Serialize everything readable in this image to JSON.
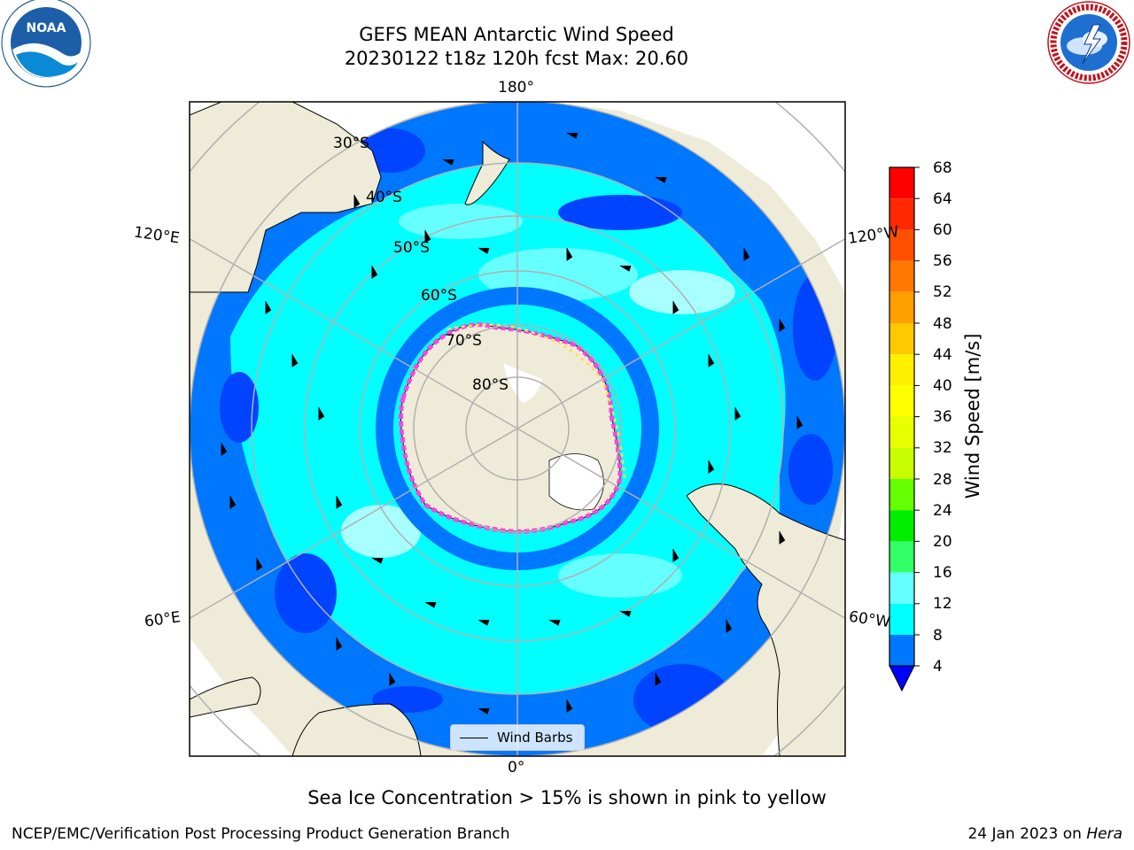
{
  "title": {
    "line1": "GEFS MEAN Antarctic Wind Speed",
    "line2": "20230122 t18z 120h fcst   Max: 20.60"
  },
  "logos": {
    "left_text": "NOAA",
    "right_text": "NATIONAL WEATHER SERVICE"
  },
  "map": {
    "projection": "south-polar-stereographic",
    "longitude_labels": {
      "top": "180°",
      "bottom": "0°",
      "left_upper": "120°E",
      "left_lower": "60°E",
      "right_upper": "120°W",
      "right_lower": "60°W"
    },
    "latitude_labels": [
      "30°S",
      "40°S",
      "50°S",
      "60°S",
      "70°S",
      "80°S"
    ],
    "legend_label": "Wind Barbs",
    "colors": {
      "land": "#eeecd9",
      "ice_white": "#ffffff",
      "ice_pink": "#ff44dd",
      "ice_yellow": "#ffdd55",
      "ocean_deep": "#0044ff",
      "ocean_mid": "#0077ff",
      "ocean_cyan": "#00ffff",
      "ocean_light": "#66ffff",
      "ocean_pale": "#a8ffff",
      "grid": "#b0b0b0"
    }
  },
  "colorbar": {
    "title": "Wind Speed [m/s]",
    "ticks": [
      "68",
      "64",
      "60",
      "56",
      "52",
      "48",
      "44",
      "40",
      "36",
      "32",
      "28",
      "24",
      "20",
      "16",
      "12",
      "8",
      "4"
    ],
    "colors": [
      "#ff0000",
      "#ff2800",
      "#ff5000",
      "#ff7800",
      "#ffa000",
      "#ffc800",
      "#fff000",
      "#ffff00",
      "#e8ff00",
      "#c8ff00",
      "#64ff00",
      "#00ee00",
      "#33ff66",
      "#66ffff",
      "#00ffff",
      "#0077ff",
      "#0000ff"
    ]
  },
  "note": "Sea Ice Concentration > 15% is shown in pink to yellow",
  "footer": {
    "left": "NCEP/EMC/Verification Post Processing Product Generation Branch",
    "right_date": "24 Jan 2023 on",
    "right_host": "Hera"
  }
}
